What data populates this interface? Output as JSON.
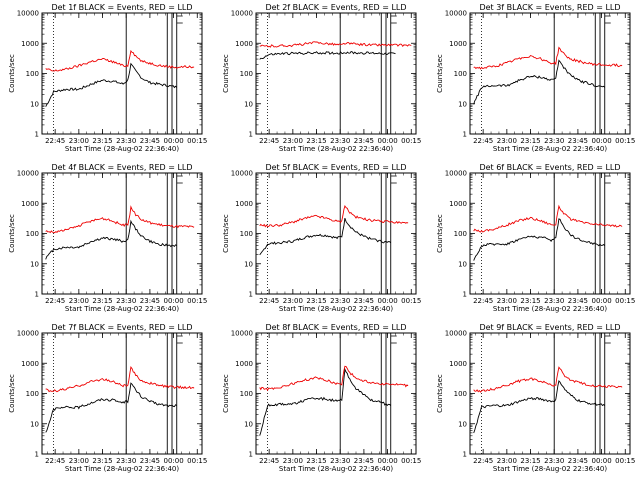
{
  "chart_data": [
    {
      "type": "line",
      "title": "Det 1f BLACK = Events, RED = LLD",
      "xlabel": "Start Time (28-Aug-02 22:36:40)",
      "ylabel": "Counts/sec",
      "xticks": [
        "22:45",
        "23:00",
        "23:15",
        "23:30",
        "23:45",
        "00:00",
        "00:15"
      ],
      "yticks": [
        "1",
        "10",
        "100",
        "1000",
        "10000"
      ],
      "ylim": [
        1,
        10000
      ],
      "yscale": "log",
      "series": [
        {
          "color": "#000000",
          "x": [
            "22:39",
            "22:44",
            "22:52",
            "23:00",
            "23:08",
            "23:15",
            "23:22",
            "23:28",
            "23:31",
            "23:33",
            "23:36",
            "23:40",
            "23:45",
            "23:50",
            "23:56",
            "00:02"
          ],
          "values": [
            8,
            25,
            30,
            30,
            45,
            60,
            55,
            45,
            60,
            200,
            120,
            70,
            50,
            45,
            40,
            35
          ]
        },
        {
          "color": "#ee0000",
          "x": [
            "22:39",
            "22:44",
            "22:52",
            "23:00",
            "23:08",
            "23:15",
            "23:22",
            "23:28",
            "23:31",
            "23:33",
            "23:36",
            "23:40",
            "23:45",
            "23:50",
            "23:56",
            "00:02",
            "00:08",
            "00:13"
          ],
          "values": [
            140,
            120,
            140,
            180,
            250,
            300,
            240,
            180,
            180,
            600,
            380,
            250,
            220,
            190,
            170,
            160,
            170,
            160
          ]
        }
      ]
    },
    {
      "type": "line",
      "title": "Det 2f BLACK = Events, RED = LLD",
      "xlabel": "Start Time (28-Aug-02 22:36:40)",
      "ylabel": "Counts/sec",
      "xticks": [
        "22:45",
        "23:00",
        "23:15",
        "23:30",
        "23:45",
        "00:00",
        "00:15"
      ],
      "yticks": [
        "1",
        "10",
        "100",
        "1000",
        "10000"
      ],
      "ylim": [
        1,
        10000
      ],
      "yscale": "log",
      "series": [
        {
          "color": "#000000",
          "x": [
            "22:39",
            "22:45",
            "22:52",
            "23:00",
            "23:08",
            "23:15",
            "23:22",
            "23:28",
            "23:31",
            "23:33",
            "23:40",
            "23:50",
            "00:00",
            "00:05"
          ],
          "values": [
            300,
            420,
            450,
            460,
            470,
            480,
            480,
            470,
            480,
            500,
            480,
            470,
            460,
            450
          ]
        },
        {
          "color": "#ee0000",
          "x": [
            "22:39",
            "22:45",
            "22:52",
            "23:00",
            "23:08",
            "23:15",
            "23:22",
            "23:28",
            "23:31",
            "23:33",
            "23:40",
            "23:50",
            "00:00",
            "00:08",
            "00:15"
          ],
          "values": [
            800,
            800,
            820,
            850,
            950,
            1050,
            980,
            900,
            880,
            1000,
            930,
            880,
            870,
            860,
            850
          ]
        }
      ]
    },
    {
      "type": "line",
      "title": "Det 3f BLACK = Events, RED = LLD",
      "xlabel": "Start Time (28-Aug-02 22:36:40)",
      "ylabel": "Counts/sec",
      "xticks": [
        "22:45",
        "23:00",
        "23:15",
        "23:30",
        "23:45",
        "00:00",
        "00:15"
      ],
      "yticks": [
        "1",
        "10",
        "100",
        "1000",
        "10000"
      ],
      "ylim": [
        1,
        10000
      ],
      "yscale": "log",
      "series": [
        {
          "color": "#000000",
          "x": [
            "22:39",
            "22:44",
            "22:52",
            "23:00",
            "23:08",
            "23:15",
            "23:22",
            "23:28",
            "23:31",
            "23:33",
            "23:36",
            "23:40",
            "23:45",
            "23:50",
            "23:56",
            "00:02"
          ],
          "values": [
            10,
            35,
            40,
            40,
            60,
            80,
            75,
            60,
            70,
            280,
            160,
            90,
            60,
            50,
            40,
            35
          ]
        },
        {
          "color": "#ee0000",
          "x": [
            "22:39",
            "22:44",
            "22:52",
            "23:00",
            "23:08",
            "23:15",
            "23:22",
            "23:28",
            "23:31",
            "23:33",
            "23:36",
            "23:40",
            "23:45",
            "23:50",
            "23:56",
            "00:02",
            "00:08",
            "00:13"
          ],
          "values": [
            160,
            150,
            170,
            220,
            320,
            380,
            300,
            220,
            220,
            700,
            450,
            300,
            260,
            220,
            200,
            190,
            190,
            180
          ]
        }
      ]
    },
    {
      "type": "line",
      "title": "Det 4f BLACK = Events, RED = LLD",
      "xlabel": "Start Time (28-Aug-02 22:36:40)",
      "ylabel": "Counts/sec",
      "xticks": [
        "22:45",
        "23:00",
        "23:15",
        "23:30",
        "23:45",
        "00:00",
        "00:15"
      ],
      "yticks": [
        "1",
        "10",
        "100",
        "1000",
        "10000"
      ],
      "ylim": [
        1,
        10000
      ],
      "yscale": "log",
      "series": [
        {
          "color": "#000000",
          "x": [
            "22:39",
            "22:44",
            "22:52",
            "23:00",
            "23:08",
            "23:15",
            "23:22",
            "23:28",
            "23:31",
            "23:33",
            "23:36",
            "23:40",
            "23:45",
            "23:50",
            "23:56",
            "00:02"
          ],
          "values": [
            15,
            30,
            35,
            35,
            55,
            70,
            65,
            55,
            60,
            250,
            140,
            80,
            55,
            45,
            40,
            40
          ]
        },
        {
          "color": "#ee0000",
          "x": [
            "22:39",
            "22:44",
            "22:52",
            "23:00",
            "23:08",
            "23:15",
            "23:22",
            "23:28",
            "23:31",
            "23:33",
            "23:36",
            "23:40",
            "23:45",
            "23:50",
            "23:56",
            "00:02",
            "00:08",
            "00:13"
          ],
          "values": [
            120,
            110,
            130,
            180,
            260,
            320,
            250,
            190,
            190,
            700,
            420,
            280,
            230,
            200,
            180,
            170,
            170,
            160
          ]
        }
      ]
    },
    {
      "type": "line",
      "title": "Det 5f BLACK = Events, RED = LLD",
      "xlabel": "Start Time (28-Aug-02 22:36:40)",
      "ylabel": "Counts/sec",
      "xticks": [
        "22:45",
        "23:00",
        "23:15",
        "23:30",
        "23:45",
        "00:00",
        "00:15"
      ],
      "yticks": [
        "1",
        "10",
        "100",
        "1000",
        "10000"
      ],
      "ylim": [
        1,
        10000
      ],
      "yscale": "log",
      "series": [
        {
          "color": "#000000",
          "x": [
            "22:39",
            "22:44",
            "22:52",
            "23:00",
            "23:08",
            "23:15",
            "23:22",
            "23:28",
            "23:31",
            "23:33",
            "23:36",
            "23:40",
            "23:45",
            "23:50",
            "23:56",
            "00:02"
          ],
          "values": [
            18,
            45,
            50,
            55,
            75,
            90,
            85,
            70,
            80,
            300,
            180,
            110,
            80,
            65,
            55,
            50
          ]
        },
        {
          "color": "#ee0000",
          "x": [
            "22:39",
            "22:44",
            "22:52",
            "23:00",
            "23:08",
            "23:15",
            "23:22",
            "23:28",
            "23:31",
            "23:33",
            "23:36",
            "23:40",
            "23:45",
            "23:50",
            "23:56",
            "00:02",
            "00:08",
            "00:13"
          ],
          "values": [
            190,
            180,
            190,
            240,
            320,
            380,
            310,
            250,
            250,
            850,
            500,
            350,
            300,
            270,
            250,
            240,
            230,
            220
          ]
        }
      ]
    },
    {
      "type": "line",
      "title": "Det 6f BLACK = Events, RED = LLD",
      "xlabel": "Start Time (28-Aug-02 22:36:40)",
      "ylabel": "Counts/sec",
      "xticks": [
        "22:45",
        "23:00",
        "23:15",
        "23:30",
        "23:45",
        "00:00",
        "00:15"
      ],
      "yticks": [
        "1",
        "10",
        "100",
        "1000",
        "10000"
      ],
      "ylim": [
        1,
        10000
      ],
      "yscale": "log",
      "series": [
        {
          "color": "#000000",
          "x": [
            "22:39",
            "22:44",
            "22:52",
            "23:00",
            "23:08",
            "23:15",
            "23:22",
            "23:28",
            "23:31",
            "23:33",
            "23:36",
            "23:40",
            "23:45",
            "23:50",
            "23:56",
            "00:02"
          ],
          "values": [
            12,
            40,
            45,
            45,
            65,
            80,
            75,
            60,
            70,
            320,
            170,
            95,
            65,
            55,
            45,
            40
          ]
        },
        {
          "color": "#ee0000",
          "x": [
            "22:39",
            "22:44",
            "22:52",
            "23:00",
            "23:08",
            "23:15",
            "23:22",
            "23:28",
            "23:31",
            "23:33",
            "23:36",
            "23:40",
            "23:45",
            "23:50",
            "23:56",
            "00:02",
            "00:08",
            "00:13"
          ],
          "values": [
            130,
            120,
            140,
            190,
            270,
            330,
            260,
            200,
            200,
            800,
            460,
            300,
            250,
            220,
            200,
            190,
            180,
            170
          ]
        }
      ]
    },
    {
      "type": "line",
      "title": "Det 7f BLACK = Events, RED = LLD",
      "xlabel": "Start Time (28-Aug-02 22:36:40)",
      "ylabel": "Counts/sec",
      "xticks": [
        "22:45",
        "23:00",
        "23:15",
        "23:30",
        "23:45",
        "00:00",
        "00:15"
      ],
      "yticks": [
        "1",
        "10",
        "100",
        "1000",
        "10000"
      ],
      "ylim": [
        1,
        10000
      ],
      "yscale": "log",
      "series": [
        {
          "color": "#000000",
          "x": [
            "22:39",
            "22:44",
            "22:52",
            "23:00",
            "23:08",
            "23:15",
            "23:22",
            "23:28",
            "23:31",
            "23:33",
            "23:36",
            "23:40",
            "23:45",
            "23:50",
            "23:56",
            "00:02"
          ],
          "values": [
            5,
            30,
            35,
            35,
            50,
            65,
            60,
            50,
            55,
            220,
            130,
            75,
            55,
            45,
            40,
            40
          ]
        },
        {
          "color": "#ee0000",
          "x": [
            "22:39",
            "22:44",
            "22:52",
            "23:00",
            "23:08",
            "23:15",
            "23:22",
            "23:28",
            "23:31",
            "23:33",
            "23:36",
            "23:40",
            "23:45",
            "23:50",
            "23:56",
            "00:02",
            "00:08",
            "00:13"
          ],
          "values": [
            130,
            120,
            140,
            180,
            250,
            300,
            240,
            180,
            180,
            700,
            400,
            260,
            220,
            190,
            170,
            160,
            160,
            150
          ]
        }
      ]
    },
    {
      "type": "line",
      "title": "Det 8f BLACK = Events, RED = LLD",
      "xlabel": "Start Time (28-Aug-02 22:36:40)",
      "ylabel": "Counts/sec",
      "xticks": [
        "22:45",
        "23:00",
        "23:15",
        "23:30",
        "23:45",
        "00:00",
        "00:15"
      ],
      "yticks": [
        "1",
        "10",
        "100",
        "1000",
        "10000"
      ],
      "ylim": [
        1,
        10000
      ],
      "yscale": "log",
      "series": [
        {
          "color": "#000000",
          "x": [
            "22:39",
            "22:44",
            "22:52",
            "23:00",
            "23:08",
            "23:15",
            "23:22",
            "23:28",
            "23:31",
            "23:33",
            "23:36",
            "23:40",
            "23:45",
            "23:50",
            "23:56",
            "00:02"
          ],
          "values": [
            4,
            40,
            45,
            45,
            60,
            70,
            65,
            55,
            60,
            600,
            300,
            150,
            90,
            60,
            50,
            40
          ]
        },
        {
          "color": "#ee0000",
          "x": [
            "22:39",
            "22:44",
            "22:52",
            "23:00",
            "23:08",
            "23:15",
            "23:22",
            "23:28",
            "23:31",
            "23:33",
            "23:36",
            "23:40",
            "23:45",
            "23:50",
            "23:56",
            "00:02",
            "00:08",
            "00:13"
          ],
          "values": [
            150,
            140,
            160,
            210,
            280,
            330,
            270,
            210,
            210,
            850,
            500,
            320,
            260,
            230,
            210,
            200,
            190,
            180
          ]
        }
      ]
    },
    {
      "type": "line",
      "title": "Det 9f BLACK = Events, RED = LLD",
      "xlabel": "Start Time (28-Aug-02 22:36:40)",
      "ylabel": "Counts/sec",
      "xticks": [
        "22:45",
        "23:00",
        "23:15",
        "23:30",
        "23:45",
        "00:00",
        "00:15"
      ],
      "yticks": [
        "1",
        "10",
        "100",
        "1000",
        "10000"
      ],
      "ylim": [
        1,
        10000
      ],
      "yscale": "log",
      "series": [
        {
          "color": "#000000",
          "x": [
            "22:39",
            "22:44",
            "22:52",
            "23:00",
            "23:08",
            "23:15",
            "23:22",
            "23:28",
            "23:31",
            "23:33",
            "23:36",
            "23:40",
            "23:45",
            "23:50",
            "23:56",
            "00:02"
          ],
          "values": [
            5,
            35,
            40,
            40,
            55,
            70,
            65,
            55,
            60,
            280,
            150,
            90,
            60,
            50,
            45,
            40
          ]
        },
        {
          "color": "#ee0000",
          "x": [
            "22:39",
            "22:44",
            "22:52",
            "23:00",
            "23:08",
            "23:15",
            "23:22",
            "23:28",
            "23:31",
            "23:33",
            "23:36",
            "23:40",
            "23:45",
            "23:50",
            "23:56",
            "00:02",
            "00:08",
            "00:13"
          ],
          "values": [
            130,
            120,
            140,
            190,
            260,
            310,
            250,
            190,
            190,
            750,
            420,
            280,
            230,
            200,
            180,
            170,
            170,
            160
          ]
        }
      ]
    }
  ]
}
